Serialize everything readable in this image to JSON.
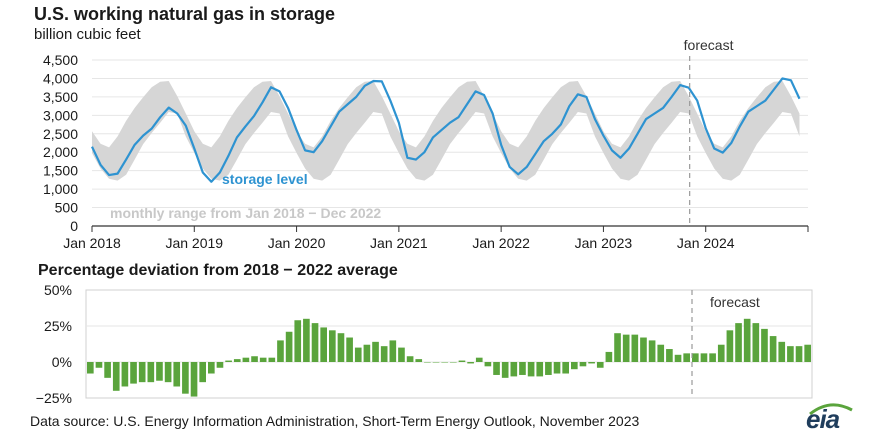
{
  "title": "U.S. working natural gas in storage",
  "subtitle": "billion cubic feet",
  "title2": "Percentage deviation from 2018 − 2022 average",
  "source": "Data source: U.S. Energy Information Administration, Short-Term Energy Outlook, November 2023",
  "logo": "eia",
  "colors": {
    "storage": "#2e93d1",
    "range": "#d6d6d6",
    "deviation": "#5aa43c",
    "forecast_line": "#999999"
  },
  "chart_data": [
    {
      "type": "line",
      "title": "U.S. working natural gas in storage",
      "ylabel": "billion cubic feet",
      "ylim": [
        0,
        4500
      ],
      "yticks": [
        0,
        500,
        1000,
        1500,
        2000,
        2500,
        3000,
        3500,
        4000,
        4500
      ],
      "ytick_labels": [
        "0",
        "500",
        "1,000",
        "1,500",
        "2,000",
        "2,500",
        "3,000",
        "3,500",
        "4,000",
        "4,500"
      ],
      "xticks": [
        "Jan 2018",
        "Jan 2019",
        "Jan 2020",
        "Jan 2021",
        "Jan 2022",
        "Jan 2023",
        "Jan 2024"
      ],
      "x_range": [
        "Jan 2018",
        "Dec 2024"
      ],
      "forecast_start": "Nov 2023",
      "forecast_label": "forecast",
      "annotations": [
        "storage level",
        "monthly range from Jan 2018 − Dec 2022"
      ],
      "range_upper": [
        2570,
        2230,
        2130,
        2430,
        2850,
        3200,
        3490,
        3760,
        3910,
        3930,
        3520,
        3050
      ],
      "range_lower": [
        1980,
        1560,
        1280,
        1230,
        1390,
        1800,
        2220,
        2520,
        2800,
        3090,
        3050,
        2430
      ],
      "series": [
        {
          "name": "storage level",
          "values": [
            2150,
            1660,
            1380,
            1420,
            1800,
            2200,
            2450,
            2640,
            2950,
            3210,
            3050,
            2720,
            2100,
            1450,
            1200,
            1450,
            1900,
            2400,
            2700,
            2980,
            3350,
            3760,
            3650,
            3200,
            2600,
            2050,
            2000,
            2300,
            2700,
            3100,
            3300,
            3500,
            3800,
            3930,
            3920,
            3400,
            2800,
            1850,
            1800,
            2000,
            2400,
            2600,
            2800,
            2950,
            3300,
            3650,
            3550,
            3050,
            2200,
            1600,
            1400,
            1600,
            1950,
            2300,
            2500,
            2750,
            3250,
            3570,
            3500,
            2900,
            2450,
            2050,
            1850,
            2100,
            2500,
            2900,
            3050,
            3200,
            3500,
            3820,
            3750,
            3400,
            2650,
            2100,
            1990,
            2250,
            2700,
            3100,
            3250,
            3400,
            3700,
            4000,
            3950,
            3450
          ]
        }
      ]
    },
    {
      "type": "bar",
      "title": "Percentage deviation from 2018 − 2022 average",
      "ylim": [
        -25,
        50
      ],
      "yticks": [
        -25,
        0,
        25,
        50
      ],
      "ytick_labels": [
        "−25%",
        "0%",
        "25%",
        "50%"
      ],
      "forecast_label": "forecast",
      "values": [
        -8,
        -4,
        -11,
        -20,
        -17,
        -15,
        -14,
        -14,
        -13,
        -14,
        -17,
        -22,
        -24,
        -14,
        -8,
        -4,
        1,
        2,
        3,
        4,
        3,
        3,
        15,
        21,
        29,
        30,
        27,
        24,
        22,
        20,
        17,
        10,
        12,
        14,
        11,
        15,
        10,
        4,
        2,
        0,
        0,
        0,
        0,
        1,
        -1,
        3,
        -3,
        -9,
        -11,
        -10,
        -9,
        -10,
        -10,
        -9,
        -8,
        -8,
        -5,
        -3,
        -1,
        -4,
        7,
        20,
        19,
        19,
        17,
        15,
        12,
        9,
        5,
        6,
        6,
        6,
        6,
        12,
        22,
        27,
        30,
        27,
        23,
        18,
        14,
        11,
        11,
        12
      ]
    }
  ]
}
